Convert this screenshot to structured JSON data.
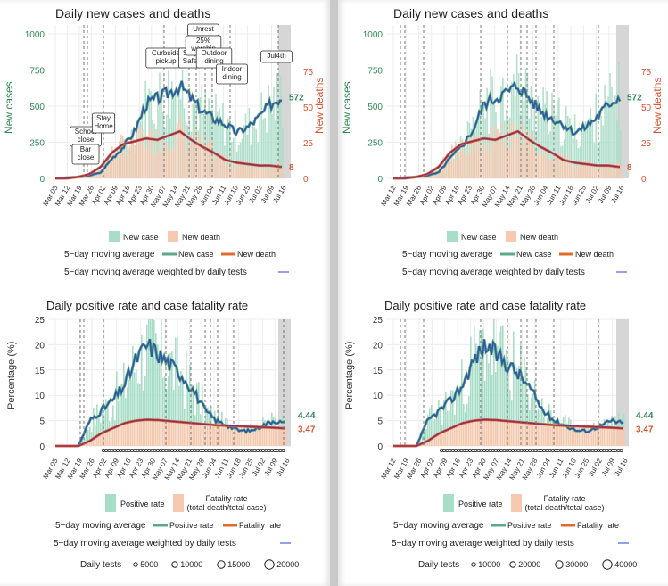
{
  "colors": {
    "cases_bar": "#a8ddc8",
    "deaths_bar": "#f7c9b0",
    "cases_line": "#5aab85",
    "deaths_line": "#e06b2e",
    "weighted_line": "#2a3fd6",
    "blue_overlay": "#3155a8",
    "death_overlay": "#8a2e6b",
    "left_axis": "#2e8b57",
    "right_axis": "#d9512c",
    "grid": "#ececec",
    "shade": "#d6d6d6"
  },
  "charts": {
    "left": {
      "top": {
        "title": "Daily new cases and deaths",
        "ylabel_left": "New cases",
        "ylabel_right": "New deaths",
        "yticks_left": [
          "0",
          "250",
          "500",
          "750",
          "1000"
        ],
        "yticks_right": [
          "0",
          "25",
          "50",
          "75"
        ],
        "xticks": [
          "Mar 05",
          "Mar 12",
          "Mar 19",
          "Mar 26",
          "Apr 02",
          "Apr 09",
          "Apr 16",
          "Apr 23",
          "Apr 30",
          "May 07",
          "May 14",
          "May 21",
          "May 28",
          "Jun 04",
          "Jun 11",
          "Jun 18",
          "Jun 25",
          "Jul 02",
          "Jul 09",
          "Jul 16"
        ],
        "end_cases": "572",
        "end_deaths": "8",
        "events": [
          {
            "label": "School\nclose"
          },
          {
            "label": "Bar\nclose"
          },
          {
            "label": "Stay\nHome"
          },
          {
            "label": "Curbside\npickup"
          },
          {
            "label": "Stay\nSafe"
          },
          {
            "label": "Unrest"
          },
          {
            "label": "25%\nworship"
          },
          {
            "label": "Outdoor\ndining"
          },
          {
            "label": "Indoor\ndining"
          },
          {
            "label": "Jul4th"
          }
        ]
      },
      "bottom": {
        "title": "Daily positive rate and case fatality rate",
        "ylabel": "Percentage (%)",
        "yticks": [
          "0",
          "5",
          "10",
          "15",
          "20",
          "25"
        ],
        "xticks": [
          "Mar 05",
          "Mar 12",
          "Mar 19",
          "Mar 26",
          "Apr 02",
          "Apr 09",
          "Apr 16",
          "Apr 23",
          "Apr 30",
          "May 07",
          "May 14",
          "May 21",
          "May 28",
          "Jun 04",
          "Jun 11",
          "Jun 18",
          "Jun 25",
          "Jul 02",
          "Jul 09",
          "Jul 16"
        ],
        "end_pos": "4.44",
        "end_fatal": "3.47",
        "tests_legend": [
          "5000",
          "10000",
          "15000",
          "20000"
        ]
      }
    },
    "right": {
      "top": {
        "title": "Daily new cases and deaths",
        "ylabel_left": "New cases",
        "ylabel_right": "New deaths",
        "yticks_left": [
          "0",
          "250",
          "500",
          "750",
          "1000"
        ],
        "yticks_right": [
          "0",
          "25",
          "50",
          "75"
        ],
        "xticks": [
          "Mar 12",
          "Mar 19",
          "Mar 26",
          "Apr 02",
          "Apr 09",
          "Apr 16",
          "Apr 23",
          "Apr 30",
          "May 07",
          "May 14",
          "May 21",
          "May 28",
          "Jun 04",
          "Jun 11",
          "Jun 18",
          "Jun 25",
          "Jul 02",
          "Jul 09",
          "Jul 16"
        ],
        "end_cases": "572",
        "end_deaths": "8"
      },
      "bottom": {
        "title": "Daily positive rate and case fatality rate",
        "ylabel": "Percentage (%)",
        "yticks": [
          "0",
          "5",
          "10",
          "15",
          "20",
          "25"
        ],
        "xticks": [
          "Mar 12",
          "Mar 19",
          "Mar 26",
          "Apr 02",
          "Apr 09",
          "Apr 16",
          "Apr 23",
          "Apr 30",
          "May 07",
          "May 14",
          "May 21",
          "May 28",
          "Jun 04",
          "Jun 11",
          "Jun 18",
          "Jun 25",
          "Jul 02",
          "Jul 09",
          "Jul 16"
        ],
        "end_pos": "4.44",
        "end_fatal": "3.47",
        "tests_legend": [
          "10000",
          "20000",
          "30000",
          "40000"
        ]
      }
    }
  },
  "legends": {
    "new_case": "New case",
    "new_death": "New death",
    "ma5": "5−day moving average",
    "ma5_case": "New case",
    "ma5_death": "New death",
    "ma5_weighted": "5−day moving average weighted by daily tests",
    "positive_rate": "Positive rate",
    "fatality_rate": "Fatality rate",
    "fatality_rate_sub": "(total death/total case)",
    "ma5_pos": "Positive rate",
    "ma5_fatal": "Fatality rate",
    "daily_tests": "Daily tests"
  },
  "chart_data": [
    {
      "type": "bar",
      "title": "Daily new cases and deaths",
      "ylabel": "New cases",
      "ylim": [
        0,
        1000
      ],
      "series": [
        {
          "name": "New case (5−day moving average)",
          "values": [
            0,
            5,
            10,
            20,
            40,
            140,
            220,
            330,
            520,
            560,
            600,
            650,
            560,
            470,
            420,
            380,
            320,
            360,
            430,
            520,
            572
          ]
        },
        {
          "name": "New death (5−day moving average)",
          "values": [
            0,
            0,
            1,
            3,
            8,
            18,
            24,
            26,
            28,
            27,
            30,
            33,
            27,
            22,
            18,
            13,
            11,
            10,
            9,
            9,
            8
          ]
        }
      ]
    },
    {
      "type": "line",
      "title": "Daily positive rate and case fatality rate",
      "ylabel": "Percentage (%)",
      "ylim": [
        0,
        25
      ],
      "series": [
        {
          "name": "Positive rate",
          "values": [
            0,
            0,
            0,
            5,
            7,
            9,
            12,
            17,
            20,
            18,
            16,
            14,
            11,
            7,
            5,
            4,
            3,
            3,
            4,
            5,
            4.44
          ]
        },
        {
          "name": "Fatality rate",
          "values": [
            0,
            0,
            0,
            1,
            2.5,
            3.5,
            4.5,
            5,
            5.2,
            5.1,
            4.9,
            4.7,
            4.5,
            4.3,
            4.1,
            4.0,
            3.9,
            3.8,
            3.7,
            3.6,
            3.47
          ]
        }
      ]
    }
  ]
}
